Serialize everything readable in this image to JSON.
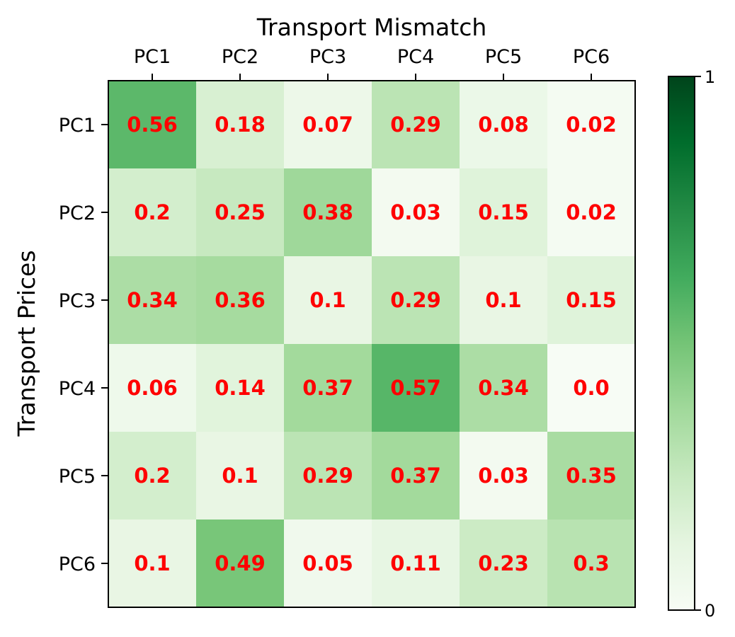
{
  "chart_data": {
    "type": "heatmap",
    "title": "Transport Mismatch",
    "xlabel": "",
    "ylabel": "Transport Prices",
    "x_categories": [
      "PC1",
      "PC2",
      "PC3",
      "PC4",
      "PC5",
      "PC6"
    ],
    "y_categories": [
      "PC1",
      "PC2",
      "PC3",
      "PC4",
      "PC5",
      "PC6"
    ],
    "values": [
      [
        0.56,
        0.18,
        0.07,
        0.29,
        0.08,
        0.02
      ],
      [
        0.2,
        0.25,
        0.38,
        0.03,
        0.15,
        0.02
      ],
      [
        0.34,
        0.36,
        0.1,
        0.29,
        0.1,
        0.15
      ],
      [
        0.06,
        0.14,
        0.37,
        0.57,
        0.34,
        0.0
      ],
      [
        0.2,
        0.1,
        0.29,
        0.37,
        0.03,
        0.35
      ],
      [
        0.1,
        0.49,
        0.05,
        0.11,
        0.23,
        0.3
      ]
    ],
    "value_labels": [
      [
        "0.56",
        "0.18",
        "0.07",
        "0.29",
        "0.08",
        "0.02"
      ],
      [
        "0.2",
        "0.25",
        "0.38",
        "0.03",
        "0.15",
        "0.02"
      ],
      [
        "0.34",
        "0.36",
        "0.1",
        "0.29",
        "0.1",
        "0.15"
      ],
      [
        "0.06",
        "0.14",
        "0.37",
        "0.57",
        "0.34",
        "0.0"
      ],
      [
        "0.2",
        "0.1",
        "0.29",
        "0.37",
        "0.03",
        "0.35"
      ],
      [
        "0.1",
        "0.49",
        "0.05",
        "0.11",
        "0.23",
        "0.3"
      ]
    ],
    "colorbar": {
      "range": [
        0,
        1
      ],
      "tick_labels": [
        "0",
        "1"
      ],
      "colormap": "Greens"
    },
    "x_tick_position": "top",
    "grid": false,
    "label_color": "#ff0000"
  }
}
